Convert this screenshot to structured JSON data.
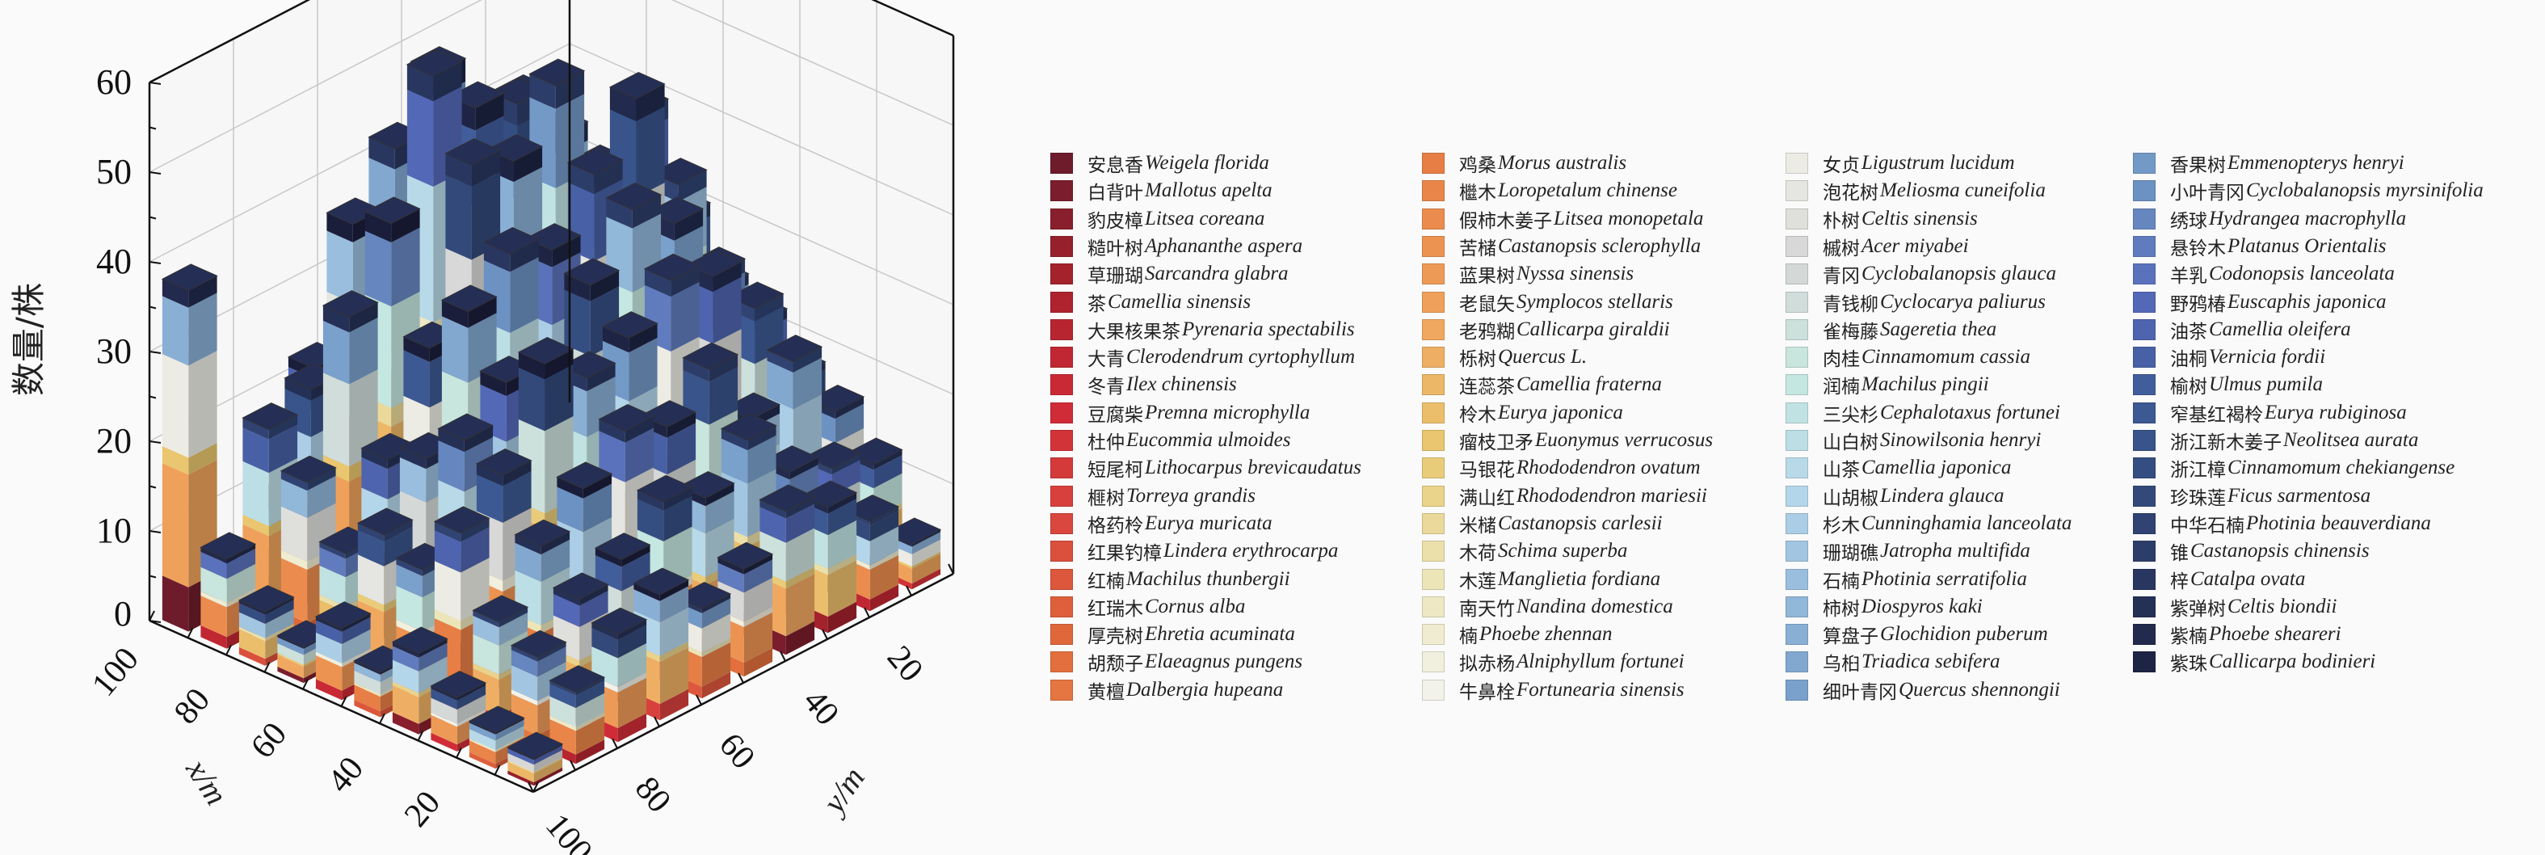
{
  "chart_data": {
    "type": "bar3d-stacked",
    "zlabel": "数量/株",
    "xlabel": "x/m",
    "ylabel": "y/m",
    "zlim": [
      0,
      60
    ],
    "z_ticks": [
      "0",
      "10",
      "20",
      "30",
      "40",
      "50",
      "60"
    ],
    "x_ticks": [
      "20",
      "40",
      "60",
      "80",
      "100"
    ],
    "y_ticks": [
      "20",
      "40",
      "60",
      "80",
      "100"
    ],
    "x_cells": [
      95,
      85,
      75,
      65,
      55,
      45,
      35,
      25,
      15,
      5
    ],
    "y_cells": [
      95,
      85,
      75,
      65,
      55,
      45,
      35,
      25,
      15,
      5
    ],
    "totals_by_x_row_then_y_col": [
      [
        38,
        3,
        9,
        22,
        14,
        30,
        40,
        18,
        26,
        12
      ],
      [
        10,
        22,
        24,
        40,
        46,
        52,
        36,
        44,
        30,
        20
      ],
      [
        6,
        18,
        34,
        42,
        56,
        50,
        48,
        42,
        34,
        26
      ],
      [
        4,
        12,
        20,
        30,
        48,
        46,
        52,
        40,
        44,
        30
      ],
      [
        8,
        16,
        22,
        36,
        40,
        38,
        44,
        50,
        38,
        24
      ],
      [
        5,
        14,
        26,
        30,
        28,
        36,
        42,
        38,
        30,
        22
      ],
      [
        9,
        20,
        24,
        34,
        30,
        32,
        36,
        34,
        28,
        18
      ],
      [
        6,
        12,
        18,
        22,
        26,
        24,
        28,
        20,
        24,
        16
      ],
      [
        4,
        10,
        14,
        16,
        20,
        18,
        22,
        16,
        14,
        12
      ],
      [
        3,
        8,
        12,
        14,
        10,
        12,
        16,
        14,
        10,
        5
      ]
    ],
    "colormap_anchors": [
      "#6e1c2c",
      "#a8222c",
      "#cf2a36",
      "#d9473e",
      "#e06a3a",
      "#eb8a4c",
      "#f0a860",
      "#e8c870",
      "#ece4b4",
      "#f2f2ea",
      "#d6d6d6",
      "#c6e8e0",
      "#b4d6ea",
      "#8eb4d8",
      "#6e94c4",
      "#5468b8",
      "#3a5890",
      "#2e3f6c",
      "#1e2444"
    ],
    "legend": [
      {
        "cn": "安息香",
        "latin": "Weigela florida"
      },
      {
        "cn": "白背叶",
        "latin": "Mallotus apelta"
      },
      {
        "cn": "豹皮樟",
        "latin": "Litsea coreana"
      },
      {
        "cn": "糙叶树",
        "latin": "Aphananthe aspera"
      },
      {
        "cn": "草珊瑚",
        "latin": "Sarcandra glabra"
      },
      {
        "cn": "茶",
        "latin": "Camellia sinensis"
      },
      {
        "cn": "大果核果茶",
        "latin": "Pyrenaria spectabilis"
      },
      {
        "cn": "大青",
        "latin": "Clerodendrum cyrtophyllum"
      },
      {
        "cn": "冬青",
        "latin": "Ilex chinensis"
      },
      {
        "cn": "豆腐柴",
        "latin": "Premna microphylla"
      },
      {
        "cn": "杜仲",
        "latin": "Eucommia ulmoides"
      },
      {
        "cn": "短尾柯",
        "latin": "Lithocarpus brevicaudatus"
      },
      {
        "cn": "榧树",
        "latin": "Torreya grandis"
      },
      {
        "cn": "格药柃",
        "latin": "Eurya muricata"
      },
      {
        "cn": "红果钓樟",
        "latin": "Lindera erythrocarpa"
      },
      {
        "cn": "红楠",
        "latin": "Machilus thunbergii"
      },
      {
        "cn": "红瑞木",
        "latin": "Cornus alba"
      },
      {
        "cn": "厚壳树",
        "latin": "Ehretia acuminata"
      },
      {
        "cn": "胡颓子",
        "latin": "Elaeagnus pungens"
      },
      {
        "cn": "黄檀",
        "latin": "Dalbergia hupeana"
      },
      {
        "cn": "鸡桑",
        "latin": "Morus australis"
      },
      {
        "cn": "檵木",
        "latin": "Loropetalum chinense"
      },
      {
        "cn": "假柿木姜子",
        "latin": "Litsea monopetala"
      },
      {
        "cn": "苦槠",
        "latin": "Castanopsis sclerophylla"
      },
      {
        "cn": "蓝果树",
        "latin": "Nyssa sinensis"
      },
      {
        "cn": "老鼠矢",
        "latin": "Symplocos stellaris"
      },
      {
        "cn": "老鸦糊",
        "latin": "Callicarpa giraldii"
      },
      {
        "cn": "栎树",
        "latin": "Quercus L."
      },
      {
        "cn": "连蕊茶",
        "latin": "Camellia fraterna"
      },
      {
        "cn": "柃木",
        "latin": "Eurya japonica"
      },
      {
        "cn": "瘤枝卫矛",
        "latin": "Euonymus verrucosus"
      },
      {
        "cn": "马银花",
        "latin": "Rhododendron ovatum"
      },
      {
        "cn": "满山红",
        "latin": "Rhododendron mariesii"
      },
      {
        "cn": "米槠",
        "latin": "Castanopsis carlesii"
      },
      {
        "cn": "木荷",
        "latin": "Schima superba"
      },
      {
        "cn": "木莲",
        "latin": "Manglietia fordiana"
      },
      {
        "cn": "南天竹",
        "latin": "Nandina domestica"
      },
      {
        "cn": "楠",
        "latin": "Phoebe zhennan"
      },
      {
        "cn": "拟赤杨",
        "latin": "Alniphyllum fortunei"
      },
      {
        "cn": "牛鼻栓",
        "latin": "Fortunearia sinensis"
      },
      {
        "cn": "女贞",
        "latin": "Ligustrum lucidum"
      },
      {
        "cn": "泡花树",
        "latin": "Meliosma cuneifolia"
      },
      {
        "cn": "朴树",
        "latin": "Celtis sinensis"
      },
      {
        "cn": "槭树",
        "latin": "Acer miyabei"
      },
      {
        "cn": "青冈",
        "latin": "Cyclobalanopsis glauca"
      },
      {
        "cn": "青钱柳",
        "latin": "Cyclocarya paliurus"
      },
      {
        "cn": "雀梅藤",
        "latin": "Sageretia thea"
      },
      {
        "cn": "肉桂",
        "latin": "Cinnamomum cassia"
      },
      {
        "cn": "润楠",
        "latin": "Machilus pingii"
      },
      {
        "cn": "三尖杉",
        "latin": "Cephalotaxus fortunei"
      },
      {
        "cn": "山白树",
        "latin": "Sinowilsonia henryi"
      },
      {
        "cn": "山茶",
        "latin": "Camellia japonica"
      },
      {
        "cn": "山胡椒",
        "latin": "Lindera glauca"
      },
      {
        "cn": "杉木",
        "latin": "Cunninghamia lanceolata"
      },
      {
        "cn": "珊瑚礁",
        "latin": "Jatropha multifida"
      },
      {
        "cn": "石楠",
        "latin": "Photinia serratifolia"
      },
      {
        "cn": "柿树",
        "latin": "Diospyros kaki"
      },
      {
        "cn": "算盘子",
        "latin": "Glochidion puberum"
      },
      {
        "cn": "乌桕",
        "latin": "Triadica sebifera"
      },
      {
        "cn": "细叶青冈",
        "latin": "Quercus shennongii"
      },
      {
        "cn": "香果树",
        "latin": "Emmenopterys henryi"
      },
      {
        "cn": "小叶青冈",
        "latin": "Cyclobalanopsis myrsinifolia"
      },
      {
        "cn": "绣球",
        "latin": "Hydrangea macrophylla"
      },
      {
        "cn": "悬铃木",
        "latin": "Platanus Orientalis"
      },
      {
        "cn": "羊乳",
        "latin": "Codonopsis lanceolata"
      },
      {
        "cn": "野鸦椿",
        "latin": "Euscaphis japonica"
      },
      {
        "cn": "油茶",
        "latin": "Camellia oleifera"
      },
      {
        "cn": "油桐",
        "latin": "Vernicia fordii"
      },
      {
        "cn": "榆树",
        "latin": "Ulmus pumila"
      },
      {
        "cn": "窄基红褐柃",
        "latin": "Eurya rubiginosa"
      },
      {
        "cn": "浙江新木姜子",
        "latin": "Neolitsea aurata"
      },
      {
        "cn": "浙江樟",
        "latin": "Cinnamomum chekiangense"
      },
      {
        "cn": "珍珠莲",
        "latin": "Ficus sarmentosa"
      },
      {
        "cn": "中华石楠",
        "latin": "Photinia beauverdiana"
      },
      {
        "cn": "锥",
        "latin": "Castanopsis chinensis"
      },
      {
        "cn": "梓",
        "latin": "Catalpa ovata"
      },
      {
        "cn": "紫弹树",
        "latin": "Celtis biondii"
      },
      {
        "cn": "紫楠",
        "latin": "Phoebe sheareri"
      },
      {
        "cn": "紫珠",
        "latin": "Callicarpa bodinieri"
      }
    ]
  }
}
